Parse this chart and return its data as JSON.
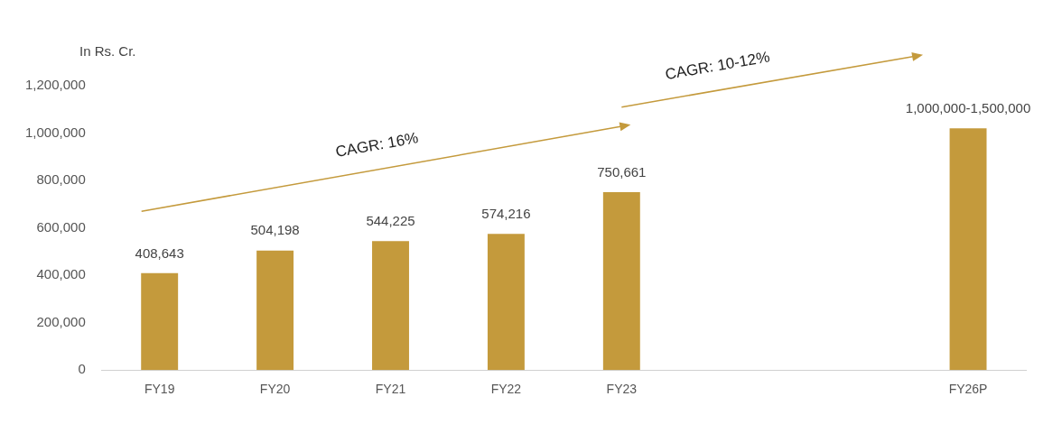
{
  "chart_data": {
    "type": "bar",
    "ylabel": "In Rs. Cr.",
    "categories": [
      "FY19",
      "FY20",
      "FY21",
      "FY22",
      "FY23",
      null,
      null,
      "FY26P"
    ],
    "values": [
      408643,
      504198,
      544225,
      574216,
      750661,
      null,
      null,
      1020000
    ],
    "value_labels": [
      "408,643",
      "504,198",
      "544,225",
      "574,216",
      "750,661",
      null,
      null,
      "1,000,000-1,500,000"
    ],
    "color": "#c49a3c",
    "ylim": [
      0,
      1200000
    ],
    "yticks": [
      0,
      {
        "value": 200000,
        "label": "200,000"
      },
      {
        "value": 400000,
        "label": "400,000"
      },
      {
        "value": 600000,
        "label": "600,000"
      },
      {
        "value": 800000,
        "label": "800,000"
      },
      {
        "value": 1000000,
        "label": "1,000,000"
      },
      {
        "value": 1200000,
        "label": "1,200,000"
      }
    ],
    "grid": false,
    "legend": false,
    "annotations": [
      "CAGR: 16%",
      "CAGR: 10-12%"
    ]
  }
}
